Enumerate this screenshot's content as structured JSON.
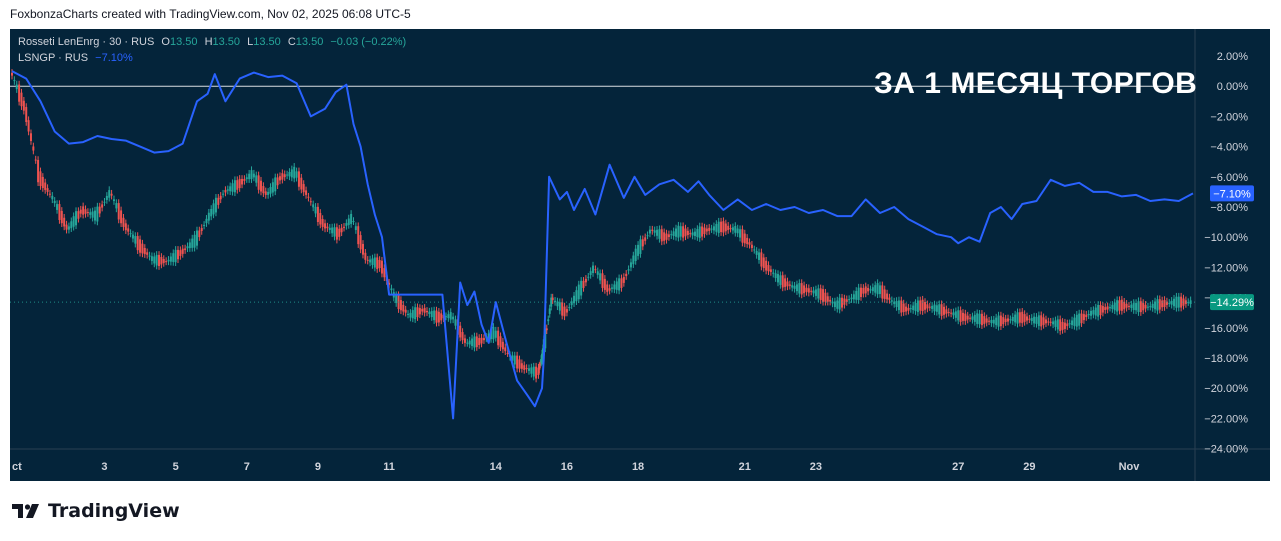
{
  "header": {
    "attribution": "FoxbonzaCharts created with TradingView.com, Nov 02, 2025 06:08 UTC-5"
  },
  "legend": {
    "main_symbol": "Rosseti LenEnrg · 30 · RUS",
    "o_label": "O",
    "o_value": "13.50",
    "h_label": "H",
    "h_value": "13.50",
    "l_label": "L",
    "l_value": "13.50",
    "c_label": "C",
    "c_value": "13.50",
    "change": "−0.03 (−0.22%)",
    "compare_symbol": "LSNGP · RUS",
    "compare_change": "−7.10%"
  },
  "headline": "ЗА 1 МЕСЯЦ ТОРГОВ",
  "footer": {
    "brand": "TradingView"
  },
  "colors": {
    "background": "#04243a",
    "compare_line": "#2962ff",
    "candle_up": "#26a69a",
    "candle_down": "#ef5350",
    "zero_line": "#ffffff",
    "badge_blue": "#2962ff",
    "badge_green": "#089981"
  },
  "chart_data": {
    "type": "line",
    "title": "ЗА 1 МЕСЯЦ ТОРГОВ",
    "y_unit": "%",
    "ylim": [
      -24,
      3
    ],
    "y_ticks": [
      "2.00%",
      "0.00%",
      "−2.00%",
      "−4.00%",
      "−6.00%",
      "−8.00%",
      "−10.00%",
      "−12.00%",
      "−14.00%",
      "−16.00%",
      "−18.00%",
      "−20.00%",
      "−22.00%",
      "−24.00%"
    ],
    "y_tick_values": [
      2,
      0,
      -2,
      -4,
      -6,
      -8,
      -10,
      -12,
      -14,
      -16,
      -18,
      -20,
      -22,
      -24
    ],
    "x_tick_labels": [
      "ct",
      "3",
      "5",
      "7",
      "9",
      "11",
      "14",
      "16",
      "18",
      "21",
      "23",
      "27",
      "29",
      "Nov"
    ],
    "x_tick_positions": [
      0.5,
      3,
      5,
      7,
      9,
      11,
      14,
      16,
      18,
      21,
      23,
      27,
      29,
      31.8
    ],
    "xlim": [
      0.4,
      33.6
    ],
    "last_values": {
      "compare": "−7.10%",
      "main": "−14.29%"
    },
    "series": [
      {
        "name": "LSNGP · RUS",
        "kind": "line",
        "x": [
          0.4,
          0.8,
          1.2,
          1.6,
          2.0,
          2.4,
          2.8,
          3.2,
          3.6,
          4.0,
          4.4,
          4.8,
          5.2,
          5.6,
          5.9,
          6.1,
          6.4,
          6.8,
          7.2,
          7.6,
          8.0,
          8.4,
          8.8,
          9.2,
          9.5,
          9.8,
          10.0,
          10.2,
          10.4,
          10.6,
          10.8,
          11.0,
          11.5,
          12.0,
          12.5,
          12.8,
          13.0,
          13.2,
          13.4,
          13.6,
          13.8,
          14.0,
          14.3,
          14.6,
          14.9,
          15.1,
          15.3,
          15.35,
          15.5,
          15.8,
          16.0,
          16.2,
          16.5,
          16.8,
          17.2,
          17.6,
          17.9,
          18.2,
          18.6,
          19.0,
          19.4,
          19.7,
          20.0,
          20.4,
          20.8,
          21.2,
          21.6,
          22.0,
          22.4,
          22.8,
          23.2,
          23.6,
          24.0,
          24.4,
          24.8,
          25.2,
          25.6,
          26.0,
          26.4,
          26.8,
          27.0,
          27.3,
          27.6,
          27.9,
          28.2,
          28.5,
          28.8,
          29.2,
          29.6,
          30.0,
          30.4,
          30.8,
          31.2,
          31.6,
          32.0,
          32.4,
          32.8,
          33.2,
          33.6
        ],
        "values": [
          1.0,
          0.5,
          -1.0,
          -3.0,
          -3.8,
          -3.7,
          -3.3,
          -3.5,
          -3.6,
          -4.0,
          -4.4,
          -4.3,
          -3.8,
          -1.0,
          -0.5,
          0.8,
          -1.0,
          0.5,
          0.9,
          0.6,
          0.7,
          0.2,
          -2.0,
          -1.5,
          -0.4,
          0.1,
          -2.5,
          -4.0,
          -6.5,
          -8.5,
          -10.0,
          -13.8,
          -13.8,
          -13.8,
          -13.8,
          -22.0,
          -13.0,
          -14.5,
          -13.6,
          -15.8,
          -17.0,
          -14.3,
          -17.0,
          -19.5,
          -20.5,
          -21.2,
          -20.0,
          -18.0,
          -6.0,
          -7.5,
          -7.0,
          -8.2,
          -6.8,
          -8.5,
          -5.2,
          -7.4,
          -6.0,
          -7.2,
          -6.5,
          -6.2,
          -7.0,
          -6.3,
          -7.2,
          -8.2,
          -7.5,
          -8.2,
          -7.8,
          -8.2,
          -8.0,
          -8.4,
          -8.2,
          -8.6,
          -8.6,
          -7.5,
          -8.4,
          -8.0,
          -8.8,
          -9.3,
          -9.8,
          -10.0,
          -10.4,
          -10.0,
          -10.3,
          -8.4,
          -8.0,
          -8.8,
          -7.8,
          -7.6,
          -6.2,
          -6.6,
          -6.4,
          -7.0,
          -7.0,
          -7.3,
          -7.2,
          -7.6,
          -7.5,
          -7.6,
          -7.1
        ]
      },
      {
        "name": "Rosseti LenEnrg · 30 · RUS",
        "kind": "candles",
        "x": [
          0.4,
          0.8,
          1.2,
          1.6,
          2.0,
          2.4,
          2.8,
          3.2,
          3.6,
          4.0,
          4.4,
          4.8,
          5.2,
          5.6,
          6.0,
          6.4,
          6.8,
          7.2,
          7.6,
          8.0,
          8.4,
          8.8,
          9.2,
          9.6,
          10.0,
          10.4,
          10.8,
          11.2,
          11.6,
          12.0,
          12.4,
          12.8,
          13.2,
          13.6,
          14.0,
          14.4,
          14.8,
          15.2,
          15.35,
          15.6,
          16.0,
          16.4,
          16.8,
          17.2,
          17.6,
          18.0,
          18.4,
          18.8,
          19.2,
          19.6,
          20.0,
          20.4,
          20.8,
          21.2,
          21.6,
          22.0,
          22.4,
          22.8,
          23.2,
          23.6,
          24.0,
          24.4,
          24.8,
          25.2,
          25.6,
          26.0,
          26.4,
          26.8,
          27.2,
          27.6,
          28.0,
          28.4,
          28.8,
          29.2,
          29.6,
          30.0,
          30.4,
          30.8,
          31.2,
          31.6,
          32.0,
          32.4,
          32.8,
          33.2,
          33.6
        ],
        "values": [
          1.0,
          -1.5,
          -6.0,
          -7.5,
          -9.5,
          -8.2,
          -8.6,
          -7.0,
          -9.2,
          -10.5,
          -11.5,
          -11.6,
          -11.0,
          -10.2,
          -8.5,
          -7.0,
          -6.5,
          -5.8,
          -7.2,
          -6.0,
          -5.7,
          -7.5,
          -9.2,
          -9.8,
          -8.7,
          -11.5,
          -11.8,
          -14.0,
          -15.2,
          -14.8,
          -15.3,
          -15.2,
          -17.0,
          -16.9,
          -16.3,
          -17.8,
          -18.6,
          -19.0,
          -17.6,
          -14.0,
          -15.0,
          -13.5,
          -12.0,
          -13.5,
          -13.0,
          -11.0,
          -9.5,
          -10.0,
          -9.6,
          -9.8,
          -9.5,
          -9.3,
          -9.5,
          -10.5,
          -11.8,
          -12.8,
          -13.3,
          -13.5,
          -13.8,
          -14.5,
          -14.1,
          -13.5,
          -13.4,
          -14.3,
          -14.8,
          -14.5,
          -14.7,
          -15.0,
          -15.3,
          -15.4,
          -15.6,
          -15.5,
          -15.3,
          -15.5,
          -15.6,
          -15.9,
          -15.5,
          -15.0,
          -14.7,
          -14.5,
          -14.6,
          -14.6,
          -14.4,
          -14.3,
          -14.3
        ]
      }
    ]
  }
}
